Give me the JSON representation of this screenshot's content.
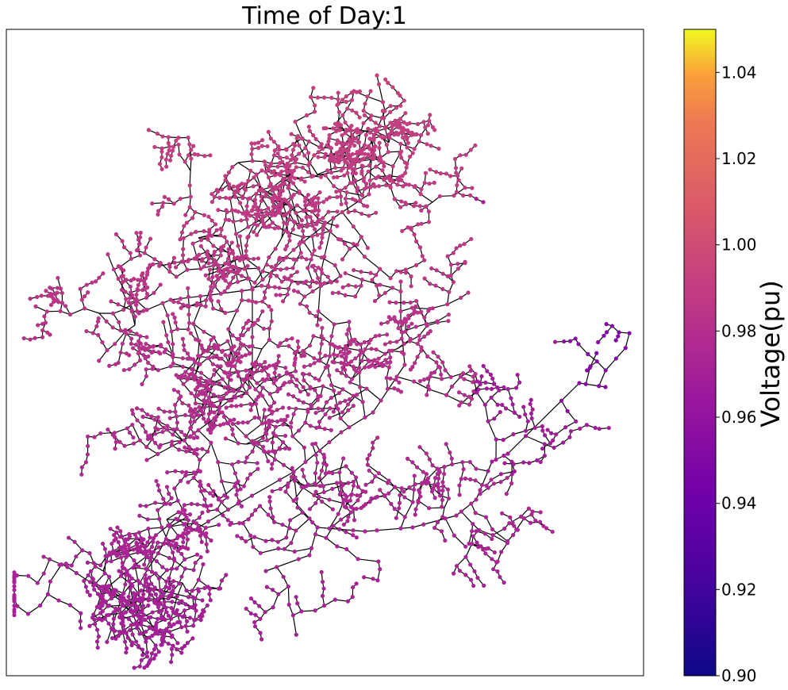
{
  "chart_data": {
    "type": "network",
    "title": "Time of Day:1",
    "colorbar": {
      "label": "Voltage(pu)",
      "colormap": "plasma",
      "range": [
        0.9,
        1.05
      ],
      "tick_values": [
        0.9,
        0.92,
        0.94,
        0.96,
        0.98,
        1.0,
        1.02,
        1.04
      ],
      "tick_labels": [
        "0.90",
        "0.92",
        "0.94",
        "0.96",
        "0.98",
        "1.00",
        "1.02",
        "1.04"
      ]
    },
    "node_voltage_range": [
      0.95,
      0.995
    ],
    "edge_color": "#000000",
    "grid": false,
    "axes_ticks": false
  }
}
